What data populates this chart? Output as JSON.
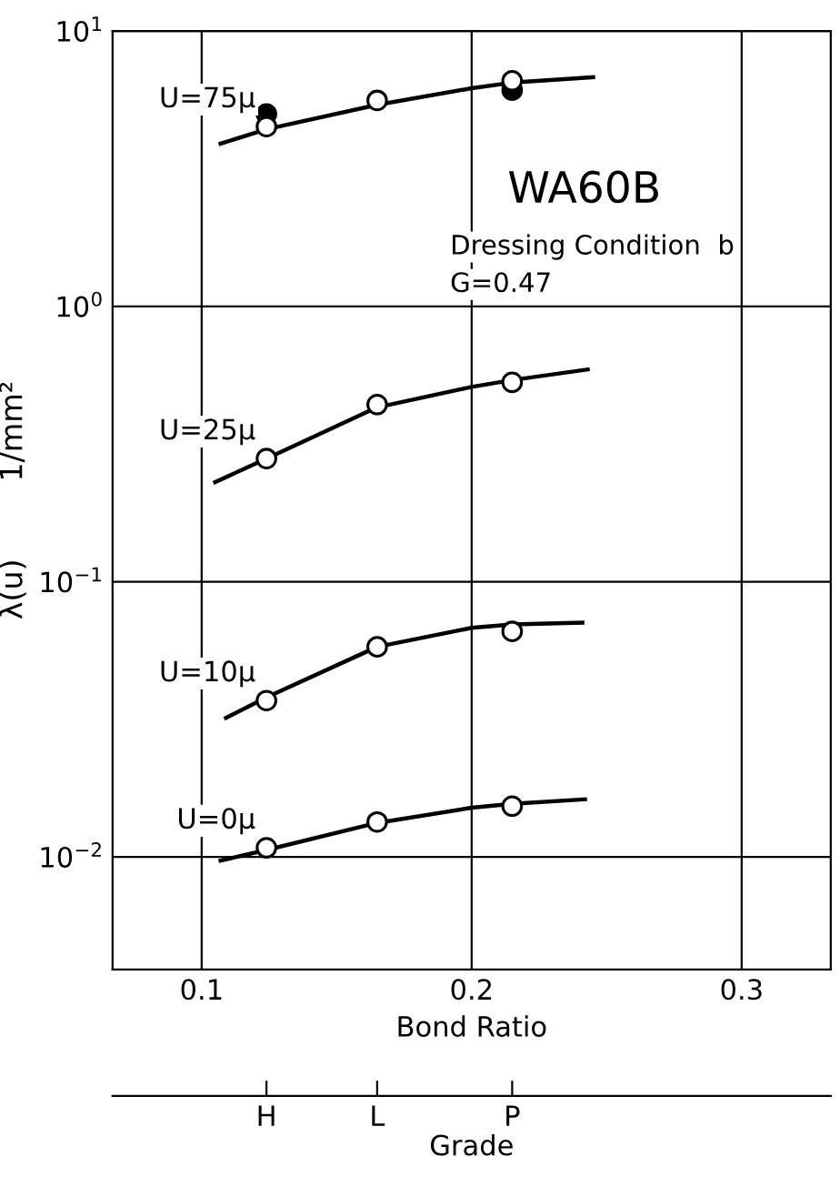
{
  "chart_data": {
    "type": "scatter",
    "xlabel": "Bond Ratio",
    "ylabel": "λ(u)        1/mm²",
    "x2label": "Grade",
    "xlim": [
      0.067,
      0.333
    ],
    "xticks": [
      0.1,
      0.2,
      0.3
    ],
    "log": "y",
    "ylim": [
      0.0039,
      10
    ],
    "yticks": [
      {
        "value": 0.01,
        "label": "10$^{−2}$"
      },
      {
        "value": 0.1,
        "label": "10$^{−1}$"
      },
      {
        "value": 1,
        "label": "10$^{0}$"
      },
      {
        "value": 10,
        "label": "10$^{1}$"
      }
    ],
    "grid": true,
    "marker": "circle",
    "annotations": [
      "WA60B",
      "Dressing Condition  b",
      "G=0.47",
      {
        "text": "H",
        "x": 0.124
      },
      {
        "text": "L",
        "x": 0.165
      },
      {
        "text": "P",
        "x": 0.215
      }
    ],
    "series": [
      {
        "name": "U=75μ",
        "color": "#ffffff",
        "x": [
          0.124,
          0.165,
          0.215
        ],
        "values": [
          4.5,
          5.6,
          6.6
        ]
      },
      {
        "color": "#000000",
        "x": [
          0.124,
          0.215
        ],
        "values": [
          5.0,
          6.1
        ]
      },
      {
        "type": "line",
        "marker": "none",
        "color": "#000000",
        "x": [
          0.107,
          0.124,
          0.165,
          0.2,
          0.215,
          0.245
        ],
        "values": [
          3.9,
          4.4,
          5.4,
          6.2,
          6.5,
          6.8
        ]
      },
      {
        "name": "U=25μ",
        "color": "#ffffff",
        "x": [
          0.124,
          0.165,
          0.215
        ],
        "values": [
          0.28,
          0.44,
          0.53
        ]
      },
      {
        "type": "line",
        "marker": "none",
        "color": "#000000",
        "x": [
          0.105,
          0.124,
          0.165,
          0.2,
          0.215,
          0.243
        ],
        "values": [
          0.23,
          0.28,
          0.43,
          0.51,
          0.54,
          0.59
        ]
      },
      {
        "name": "U=10μ",
        "color": "#ffffff",
        "x": [
          0.124,
          0.165,
          0.215
        ],
        "values": [
          0.037,
          0.058,
          0.066
        ]
      },
      {
        "type": "line",
        "marker": "none",
        "color": "#000000",
        "x": [
          0.109,
          0.124,
          0.165,
          0.2,
          0.215,
          0.241
        ],
        "values": [
          0.032,
          0.038,
          0.058,
          0.068,
          0.07,
          0.071
        ]
      },
      {
        "name": "U=0μ",
        "color": "#ffffff",
        "x": [
          0.124,
          0.165,
          0.215
        ],
        "values": [
          0.0108,
          0.0134,
          0.0153
        ]
      },
      {
        "type": "line",
        "marker": "none",
        "color": "#000000",
        "x": [
          0.107,
          0.124,
          0.165,
          0.2,
          0.215,
          0.242
        ],
        "values": [
          0.0097,
          0.0106,
          0.0133,
          0.0151,
          0.0156,
          0.0162
        ]
      }
    ]
  }
}
